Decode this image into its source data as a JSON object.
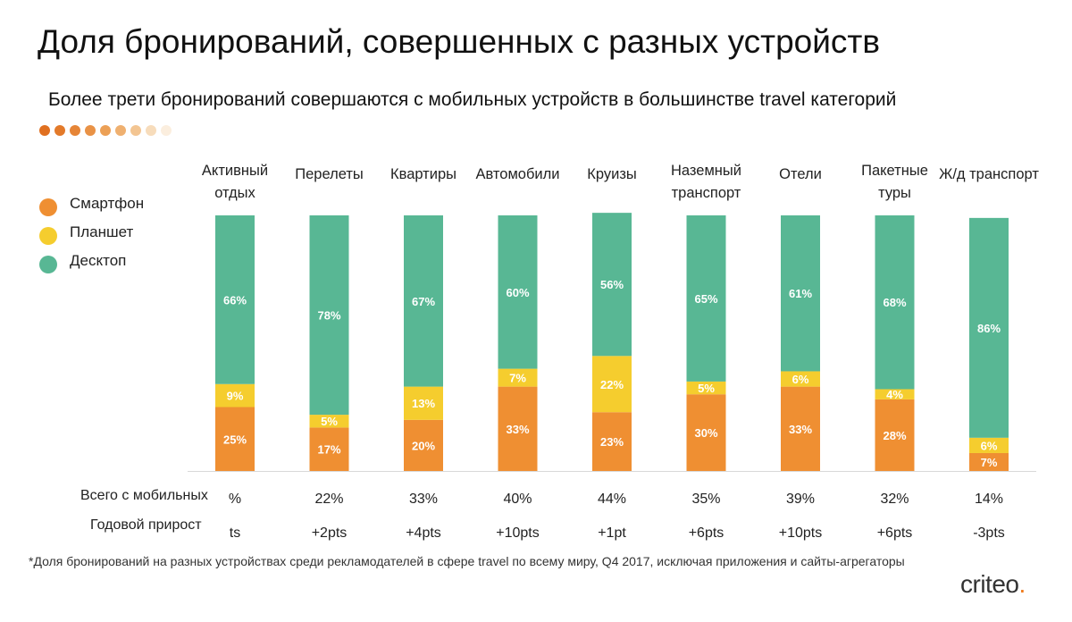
{
  "title": "Доля бронирований, совершенных с разных устройств",
  "subtitle": "Более трети бронирований совершаются с мобильных устройств в большинстве travel категорий",
  "decor_dot_colors": [
    "#e07020",
    "#e37a2a",
    "#e68537",
    "#e99246",
    "#eca056",
    "#efb070",
    "#f3c592",
    "#f7dcbb",
    "#fbeede"
  ],
  "legend": [
    {
      "label": "Смартфон",
      "color": "#ef8f32"
    },
    {
      "label": "Планшет",
      "color": "#f5cd2e"
    },
    {
      "label": "Десктоп",
      "color": "#58b794"
    }
  ],
  "row_labels": {
    "mobile_total": "Всего с мобильных",
    "yoy_growth": "Годовой прирост"
  },
  "chart_data": {
    "type": "bar",
    "stacked": true,
    "orientation": "vertical",
    "title": "Доля бронирований, совершенных с разных устройств",
    "categories": [
      [
        "Активный",
        "отдых"
      ],
      [
        "Перелеты"
      ],
      [
        "Квартиры"
      ],
      [
        "Автомобили"
      ],
      [
        "Круизы"
      ],
      [
        "Наземный",
        "транспорт"
      ],
      [
        "Отели"
      ],
      [
        "Пакетные",
        "туры"
      ],
      [
        "Ж/д транспорт"
      ]
    ],
    "series": [
      {
        "name": "Смартфон",
        "color": "#ef8f32",
        "values": [
          25,
          17,
          20,
          33,
          23,
          30,
          33,
          28,
          7
        ],
        "labels": [
          "25%",
          "17%",
          "20%",
          "33%",
          "23%",
          "30%",
          "33%",
          "28%",
          "7%"
        ]
      },
      {
        "name": "Планшет",
        "color": "#f5cd2e",
        "values": [
          9,
          5,
          13,
          7,
          22,
          5,
          6,
          4,
          6
        ],
        "labels": [
          "9%",
          "5%",
          "13%",
          "7%",
          "22%",
          "5%",
          "6%",
          "4%",
          "6%"
        ]
      },
      {
        "name": "Десктоп",
        "color": "#58b794",
        "values": [
          66,
          78,
          67,
          60,
          56,
          65,
          61,
          68,
          86
        ],
        "labels": [
          "66%",
          "78%",
          "67%",
          "60%",
          "56%",
          "65%",
          "61%",
          "68%",
          "86%"
        ]
      }
    ],
    "mobile_total": [
      "%",
      "22%",
      "33%",
      "40%",
      "44%",
      "35%",
      "39%",
      "32%",
      "14%"
    ],
    "yoy_growth": [
      "ts",
      "+2pts",
      "+4pts",
      "+10pts",
      "+1pt",
      "+6pts",
      "+10pts",
      "+6pts",
      "-3pts"
    ],
    "ylim": [
      0,
      100
    ],
    "legend_position": "left"
  },
  "footnote": "*Доля бронирований на разных устройствах среди рекламодателей в сфере travel по всему миру, Q4 2017, исключая приложения и сайты-агрегаторы",
  "logo": {
    "text": "criteo",
    "mark": "."
  }
}
